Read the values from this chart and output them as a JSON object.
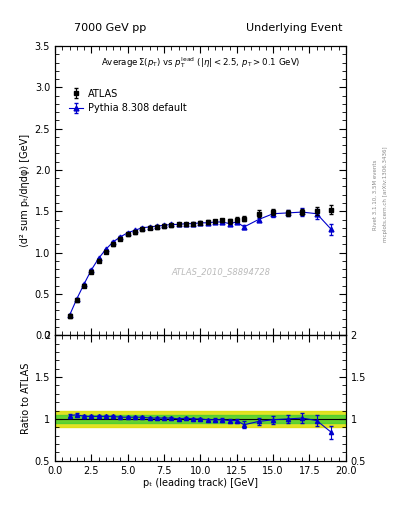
{
  "title_left": "7000 GeV pp",
  "title_right": "Underlying Event",
  "annotation2": "ATLAS_2010_S8894728",
  "right_label": "Rivet 3.1.10, 3.5M events",
  "right_label2": "mcplots.cern.ch [arXiv:1306.3436]",
  "ylabel_main": "⟨d² sum pₜ/dηdφ⟩ [GeV]",
  "ylabel_ratio": "Ratio to ATLAS",
  "xlabel": "pₜ (leading track) [GeV]",
  "xlim": [
    0,
    20
  ],
  "ylim_main": [
    0,
    3.5
  ],
  "ylim_ratio": [
    0.5,
    2.0
  ],
  "legend_atlas": "ATLAS",
  "legend_pythia": "Pythia 8.308 default",
  "atlas_x": [
    1.0,
    1.5,
    2.0,
    2.5,
    3.0,
    3.5,
    4.0,
    4.5,
    5.0,
    5.5,
    6.0,
    6.5,
    7.0,
    7.5,
    8.0,
    8.5,
    9.0,
    9.5,
    10.0,
    10.5,
    11.0,
    11.5,
    12.0,
    12.5,
    13.0,
    14.0,
    15.0,
    16.0,
    17.0,
    18.0,
    19.0
  ],
  "atlas_y": [
    0.23,
    0.42,
    0.6,
    0.77,
    0.9,
    1.01,
    1.1,
    1.17,
    1.22,
    1.25,
    1.28,
    1.3,
    1.31,
    1.32,
    1.33,
    1.34,
    1.34,
    1.35,
    1.36,
    1.37,
    1.38,
    1.39,
    1.38,
    1.4,
    1.41,
    1.47,
    1.49,
    1.48,
    1.49,
    1.5,
    1.52
  ],
  "atlas_yerr": [
    0.02,
    0.02,
    0.02,
    0.02,
    0.02,
    0.02,
    0.02,
    0.02,
    0.02,
    0.02,
    0.02,
    0.02,
    0.02,
    0.02,
    0.02,
    0.02,
    0.02,
    0.02,
    0.02,
    0.02,
    0.02,
    0.02,
    0.03,
    0.03,
    0.03,
    0.04,
    0.04,
    0.04,
    0.04,
    0.05,
    0.05
  ],
  "pythia_x": [
    1.0,
    1.5,
    2.0,
    2.5,
    3.0,
    3.5,
    4.0,
    4.5,
    5.0,
    5.5,
    6.0,
    6.5,
    7.0,
    7.5,
    8.0,
    8.5,
    9.0,
    9.5,
    10.0,
    10.5,
    11.0,
    11.5,
    12.0,
    12.5,
    13.0,
    14.0,
    15.0,
    16.0,
    17.0,
    18.0,
    19.0
  ],
  "pythia_y": [
    0.24,
    0.44,
    0.62,
    0.79,
    0.93,
    1.04,
    1.13,
    1.19,
    1.24,
    1.27,
    1.3,
    1.31,
    1.32,
    1.33,
    1.34,
    1.34,
    1.35,
    1.35,
    1.36,
    1.36,
    1.37,
    1.37,
    1.35,
    1.37,
    1.31,
    1.4,
    1.47,
    1.48,
    1.49,
    1.47,
    1.28
  ],
  "pythia_yerr": [
    0.005,
    0.005,
    0.005,
    0.005,
    0.005,
    0.005,
    0.005,
    0.005,
    0.005,
    0.005,
    0.005,
    0.005,
    0.005,
    0.005,
    0.005,
    0.005,
    0.005,
    0.005,
    0.005,
    0.005,
    0.005,
    0.005,
    0.01,
    0.01,
    0.02,
    0.02,
    0.04,
    0.04,
    0.05,
    0.06,
    0.07
  ],
  "ratio_y": [
    1.04,
    1.05,
    1.03,
    1.03,
    1.03,
    1.03,
    1.03,
    1.02,
    1.02,
    1.02,
    1.02,
    1.01,
    1.01,
    1.01,
    1.01,
    1.0,
    1.01,
    1.0,
    1.0,
    0.99,
    0.99,
    0.99,
    0.98,
    0.98,
    0.93,
    0.97,
    0.99,
    1.0,
    1.01,
    0.98,
    0.84
  ],
  "ratio_yerr": [
    0.02,
    0.02,
    0.015,
    0.015,
    0.015,
    0.015,
    0.015,
    0.015,
    0.015,
    0.015,
    0.01,
    0.01,
    0.01,
    0.01,
    0.01,
    0.01,
    0.01,
    0.01,
    0.01,
    0.01,
    0.015,
    0.015,
    0.02,
    0.02,
    0.04,
    0.04,
    0.05,
    0.05,
    0.06,
    0.07,
    0.08
  ],
  "band_green_lo": 0.95,
  "band_green_hi": 1.05,
  "band_yellow_lo": 0.9,
  "band_yellow_hi": 1.1,
  "color_atlas": "#000000",
  "color_pythia": "#0000cc",
  "color_green": "#33cc33",
  "color_yellow": "#dddd00",
  "color_bg": "#ffffff"
}
